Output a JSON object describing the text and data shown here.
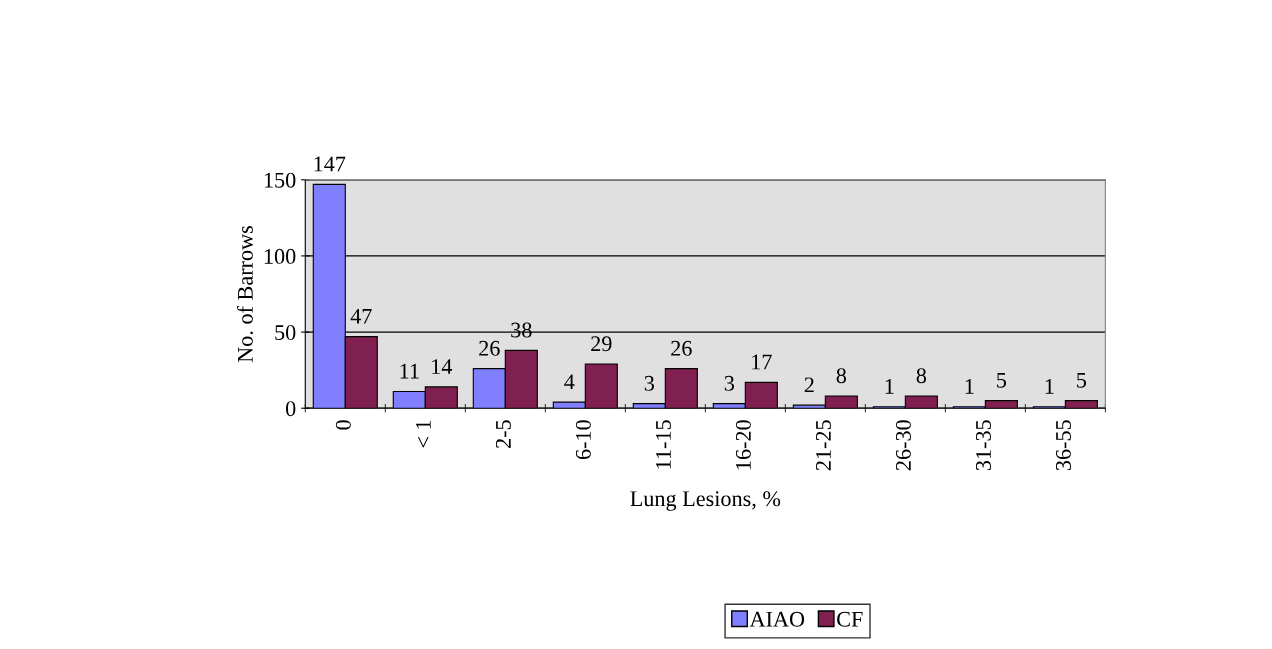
{
  "chart_data": {
    "type": "bar",
    "xlabel": "Lung Lesions, %",
    "ylabel": "No. of Barrows",
    "categories": [
      "0",
      "< 1",
      "2-5",
      "6-10",
      "11-15",
      "16-20",
      "21-25",
      "26-30",
      "31-35",
      "36-55"
    ],
    "series": [
      {
        "name": "AIAO",
        "color": "#8080ff",
        "values": [
          147,
          11,
          26,
          4,
          3,
          3,
          2,
          1,
          1,
          1
        ]
      },
      {
        "name": "CF",
        "color": "#802050",
        "values": [
          47,
          14,
          38,
          29,
          26,
          17,
          8,
          8,
          5,
          5
        ]
      }
    ],
    "ylim": [
      0,
      150
    ],
    "yticks": [
      0,
      50,
      100,
      150
    ],
    "grid": "y",
    "legend": "bottom",
    "data_labels": true
  }
}
